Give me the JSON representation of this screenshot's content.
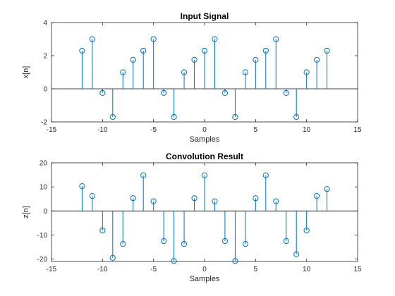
{
  "chart_data": [
    {
      "type": "stem",
      "title": "Input Signal",
      "xlabel": "Samples",
      "ylabel": "x[n]",
      "xlim": [
        -15,
        15
      ],
      "ylim": [
        -2,
        4
      ],
      "xticks": [
        -15,
        -10,
        -5,
        0,
        5,
        10,
        15
      ],
      "yticks": [
        -2,
        0,
        2,
        4
      ],
      "grid": false,
      "color": "#0072BD",
      "x": [
        -12,
        -11,
        -10,
        -9,
        -8,
        -7,
        -6,
        -5,
        -4,
        -3,
        -2,
        -1,
        0,
        1,
        2,
        3,
        4,
        5,
        6,
        7,
        8,
        9,
        10,
        11,
        12
      ],
      "y": [
        2.3,
        3.0,
        -0.25,
        -1.7,
        1.0,
        1.75,
        2.3,
        3.0,
        -0.25,
        -1.7,
        1.0,
        1.75,
        2.3,
        3.0,
        -0.25,
        -1.7,
        1.0,
        1.75,
        2.3,
        3.0,
        -0.25,
        -1.7,
        1.0,
        1.75,
        2.3
      ]
    },
    {
      "type": "stem",
      "title": "Convolution Result",
      "xlabel": "Samples",
      "ylabel": "z[n]",
      "xlim": [
        -15,
        15
      ],
      "ylim": [
        -21,
        20
      ],
      "xticks": [
        -15,
        -10,
        -5,
        0,
        5,
        10,
        15
      ],
      "yticks": [
        -20,
        -10,
        0,
        10,
        20
      ],
      "grid": false,
      "color": "#0072BD",
      "x": [
        -12,
        -11,
        -10,
        -9,
        -8,
        -7,
        -6,
        -5,
        -4,
        -3,
        -2,
        -1,
        0,
        1,
        2,
        3,
        4,
        5,
        6,
        7,
        8,
        9,
        10,
        11,
        12
      ],
      "y": [
        10.3,
        6.2,
        -8.1,
        -19.5,
        -13.7,
        5.3,
        14.8,
        4.0,
        -12.5,
        -20.8,
        -13.7,
        5.3,
        14.8,
        4.0,
        -12.5,
        -20.8,
        -13.7,
        5.3,
        14.8,
        4.0,
        -12.5,
        -18.0,
        -8.1,
        6.2,
        9.1
      ]
    }
  ]
}
